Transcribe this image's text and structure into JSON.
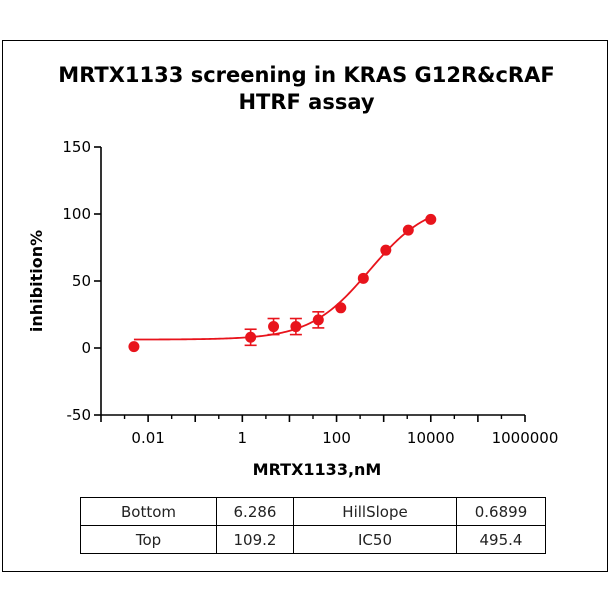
{
  "chart_data": {
    "type": "scatter",
    "title": [
      "MRTX1133 screening in KRAS G12R&cRAF",
      "HTRF assay"
    ],
    "xlabel": "MRTX1133,nM",
    "ylabel": "inhibition%",
    "xscale": "log",
    "xlim": [
      0.001,
      1000000
    ],
    "ylim": [
      -50,
      150
    ],
    "yticks": [
      "-50",
      "0",
      "50",
      "100",
      "150"
    ],
    "xticks": [
      "0.01",
      "1",
      "100",
      "10000",
      "1000000"
    ],
    "series": [
      {
        "color": "#e8141c",
        "points": [
          {
            "x": 0.005,
            "y": 1,
            "err": 2
          },
          {
            "x": 1.5,
            "y": 8,
            "err": 6
          },
          {
            "x": 4.6,
            "y": 16,
            "err": 6
          },
          {
            "x": 13.7,
            "y": 16,
            "err": 6
          },
          {
            "x": 41,
            "y": 21,
            "err": 6
          },
          {
            "x": 123,
            "y": 30,
            "err": 2
          },
          {
            "x": 370,
            "y": 52,
            "err": 2
          },
          {
            "x": 1111,
            "y": 73,
            "err": 2
          },
          {
            "x": 3333,
            "y": 88,
            "err": 2
          },
          {
            "x": 10000,
            "y": 96,
            "err": 2
          }
        ]
      }
    ],
    "fit": {
      "bottom": 6.286,
      "top": 109.2,
      "ic50": 495.4,
      "hillslope": 0.6899,
      "color": "#e8141c"
    }
  },
  "params_table": {
    "rows": [
      [
        "Bottom",
        "6.286",
        "HillSlope",
        "0.6899"
      ],
      [
        "Top",
        "109.2",
        "IC50",
        "495.4"
      ]
    ]
  }
}
